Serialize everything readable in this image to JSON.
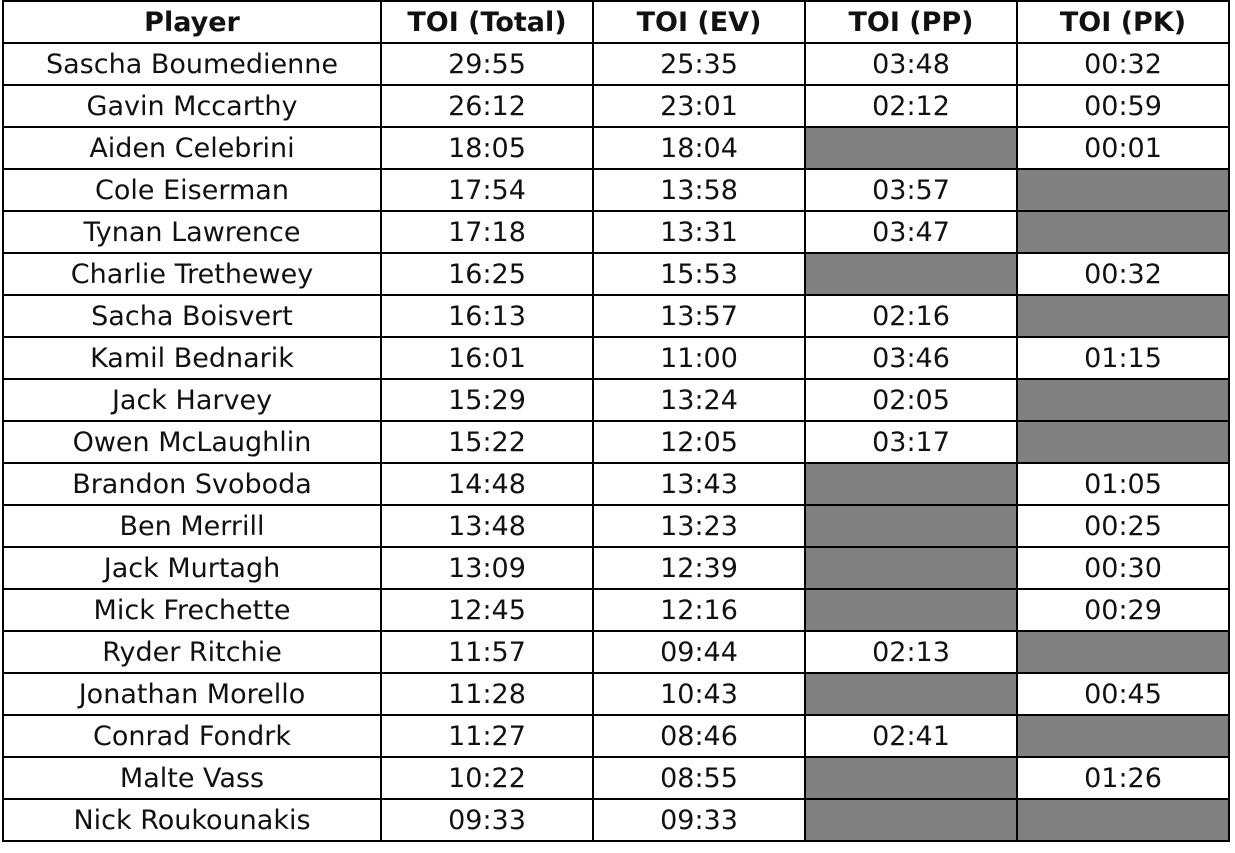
{
  "table": {
    "header": [
      "Player",
      "TOI (Total)",
      "TOI (EV)",
      "TOI (PP)",
      "TOI (PK)"
    ],
    "rows": [
      [
        "Sascha Boumedienne",
        "29:55",
        "25:35",
        "03:48",
        "00:32"
      ],
      [
        "Gavin Mccarthy",
        "26:12",
        "23:01",
        "02:12",
        "00:59"
      ],
      [
        "Aiden Celebrini",
        "18:05",
        "18:04",
        null,
        "00:01"
      ],
      [
        "Cole Eiserman",
        "17:54",
        "13:58",
        "03:57",
        null
      ],
      [
        "Tynan Lawrence",
        "17:18",
        "13:31",
        "03:47",
        null
      ],
      [
        "Charlie Trethewey",
        "16:25",
        "15:53",
        null,
        "00:32"
      ],
      [
        "Sacha Boisvert",
        "16:13",
        "13:57",
        "02:16",
        null
      ],
      [
        "Kamil Bednarik",
        "16:01",
        "11:00",
        "03:46",
        "01:15"
      ],
      [
        "Jack Harvey",
        "15:29",
        "13:24",
        "02:05",
        null
      ],
      [
        "Owen McLaughlin",
        "15:22",
        "12:05",
        "03:17",
        null
      ],
      [
        "Brandon Svoboda",
        "14:48",
        "13:43",
        null,
        "01:05"
      ],
      [
        "Ben Merrill",
        "13:48",
        "13:23",
        null,
        "00:25"
      ],
      [
        "Jack Murtagh",
        "13:09",
        "12:39",
        null,
        "00:30"
      ],
      [
        "Mick Frechette",
        "12:45",
        "12:16",
        null,
        "00:29"
      ],
      [
        "Ryder Ritchie",
        "11:57",
        "09:44",
        "02:13",
        null
      ],
      [
        "Jonathan Morello",
        "11:28",
        "10:43",
        null,
        "00:45"
      ],
      [
        "Conrad Fondrk",
        "11:27",
        "08:46",
        "02:41",
        null
      ],
      [
        "Malte Vass",
        "10:22",
        "08:55",
        null,
        "01:26"
      ],
      [
        "Nick Roukounakis",
        "09:33",
        "09:33",
        null,
        null
      ]
    ]
  }
}
